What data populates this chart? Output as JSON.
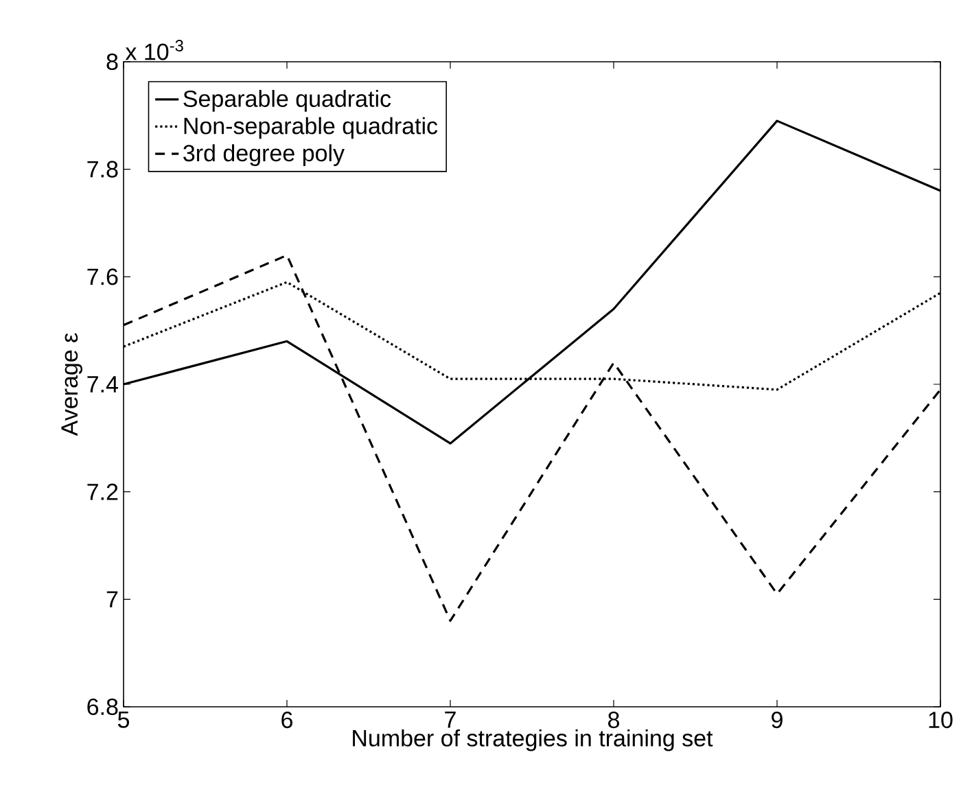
{
  "chart_data": {
    "type": "line",
    "xlabel": "Number of strategies in training set",
    "ylabel": "Average ε",
    "annotations": [
      "x 10$^{-3}$"
    ],
    "x": [
      5,
      6,
      7,
      8,
      9,
      10
    ],
    "xlim": [
      5,
      10
    ],
    "xticks": [
      5,
      6,
      7,
      8,
      9,
      10
    ],
    "ylim": [
      6.8,
      8
    ],
    "yticks": [
      6.8,
      7,
      7.2,
      7.4,
      7.6,
      7.8,
      8
    ],
    "legend": "top left",
    "series": [
      {
        "name": "Separable quadratic",
        "color": "#000000",
        "line_style": "solid",
        "values": [
          7.4,
          7.48,
          7.29,
          7.54,
          7.89,
          7.76
        ]
      },
      {
        "name": "Non-separable quadratic",
        "color": "#000000",
        "line_style": "dotted",
        "values": [
          7.47,
          7.59,
          7.41,
          7.41,
          7.39,
          7.57
        ]
      },
      {
        "name": "3rd degree poly",
        "color": "#000000",
        "line_style": "dashed",
        "values": [
          7.51,
          7.64,
          6.96,
          7.44,
          7.01,
          7.39
        ]
      }
    ]
  }
}
